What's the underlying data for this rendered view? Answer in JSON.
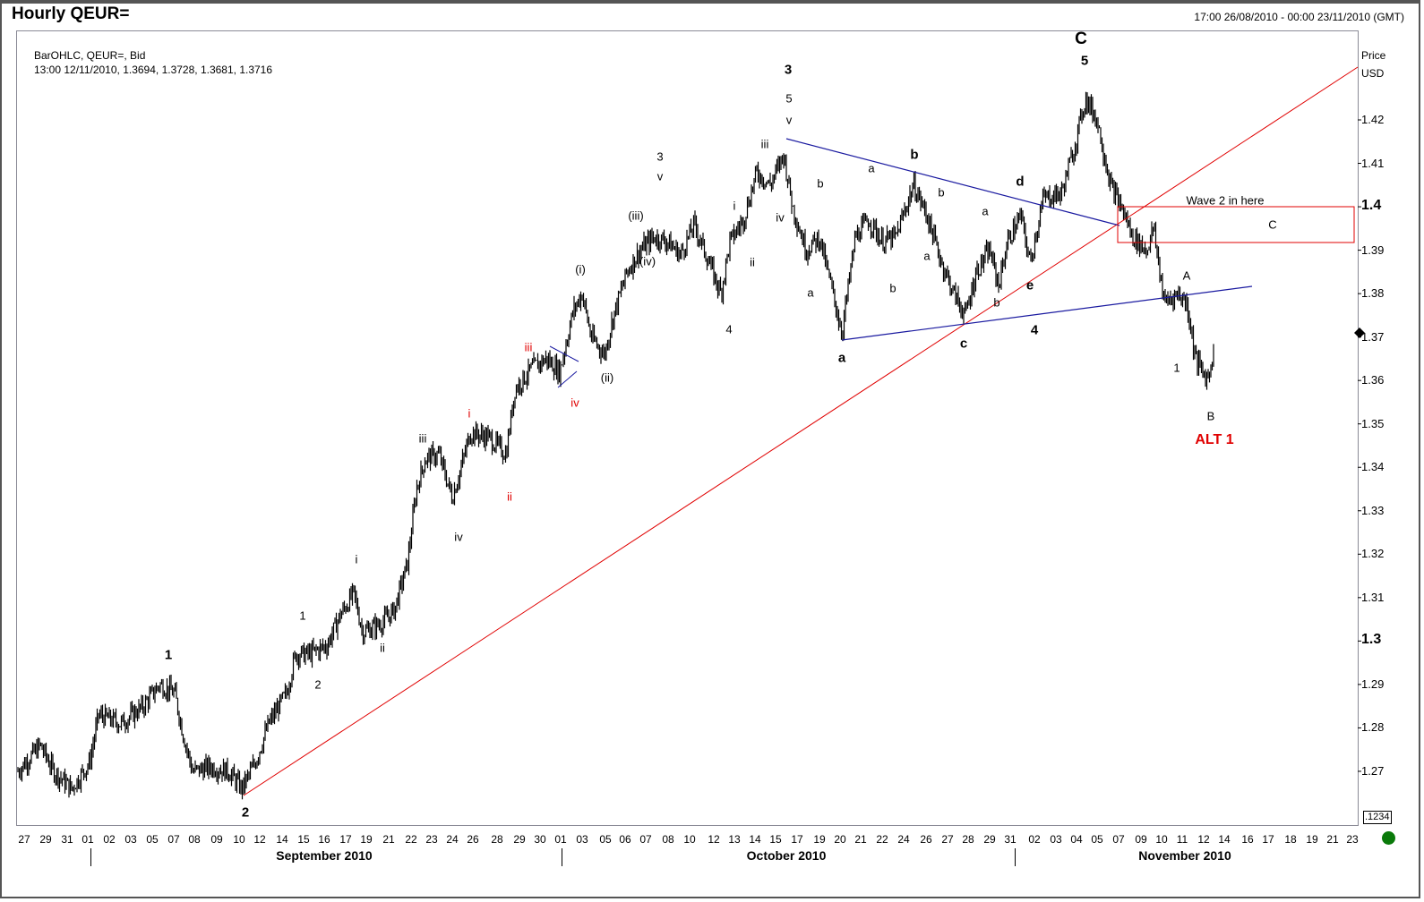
{
  "header": {
    "title": "Hourly QEUR=",
    "date_range": "17:00 26/08/2010 - 00:00 23/11/2010 (GMT)"
  },
  "info": {
    "line1": "BarOHLC, QEUR=, Bid",
    "line2": "13:00 12/11/2010, 1.3694, 1.3728, 1.3681, 1.3716"
  },
  "axis": {
    "price_label": "Price",
    "currency_label": "USD",
    "price_box": ".1234"
  },
  "colors": {
    "bars": "#000000",
    "trendline_red": "#e00000",
    "triangle_blue": "#1a1aa0",
    "zone_box": "#e00000",
    "status": "#0a7a0a"
  },
  "chart_data": {
    "type": "bar",
    "subtype": "OHLC hourly",
    "title": "Hourly QEUR=",
    "instrument": "QEUR=",
    "xlabel": "",
    "ylabel": "Price USD",
    "ylim": [
      1.262,
      1.432
    ],
    "grid": false,
    "y_ticks": [
      "1.42",
      "1.41",
      "1.4",
      "1.39",
      "1.38",
      "1.37",
      "1.36",
      "1.35",
      "1.34",
      "1.33",
      "1.32",
      "1.31",
      "1.3",
      "1.29",
      "1.28",
      "1.27"
    ],
    "x_ticks": [
      "27",
      "29",
      "31",
      "01",
      "02",
      "03",
      "05",
      "07",
      "08",
      "09",
      "10",
      "12",
      "14",
      "15",
      "16",
      "17",
      "19",
      "21",
      "22",
      "23",
      "24",
      "26",
      "28",
      "29",
      "30",
      "01",
      "03",
      "05",
      "06",
      "07",
      "08",
      "10",
      "12",
      "13",
      "14",
      "15",
      "17",
      "19",
      "20",
      "21",
      "22",
      "24",
      "26",
      "27",
      "28",
      "29",
      "31",
      "02",
      "03",
      "04",
      "05",
      "07",
      "09",
      "10",
      "11",
      "12",
      "14",
      "16",
      "17",
      "18",
      "19",
      "21",
      "23"
    ],
    "months": [
      "September 2010",
      "October 2010",
      "November 2010"
    ],
    "last_bar": {
      "time": "13:00 12/11/2010",
      "open": 1.3694,
      "high": 1.3728,
      "low": 1.3681,
      "close": 1.3716
    },
    "key_points": [
      {
        "label": "1",
        "date": "06/09",
        "price": 1.292
      },
      {
        "label": "2",
        "date": "10/09",
        "price": 1.265
      },
      {
        "label": "3",
        "date": "16/10",
        "price": 1.416
      },
      {
        "label": "4 (a)",
        "date": "20/10",
        "price": 1.369
      },
      {
        "label": "c",
        "date": "28/10",
        "price": 1.373
      },
      {
        "label": "C 5",
        "date": "04/11",
        "price": 1.427
      },
      {
        "label": "B",
        "date": "12/11",
        "price": 1.357
      }
    ],
    "annotations": [
      "Wave 2 in here",
      "C",
      "ALT 1",
      "A",
      "B",
      "1"
    ]
  }
}
